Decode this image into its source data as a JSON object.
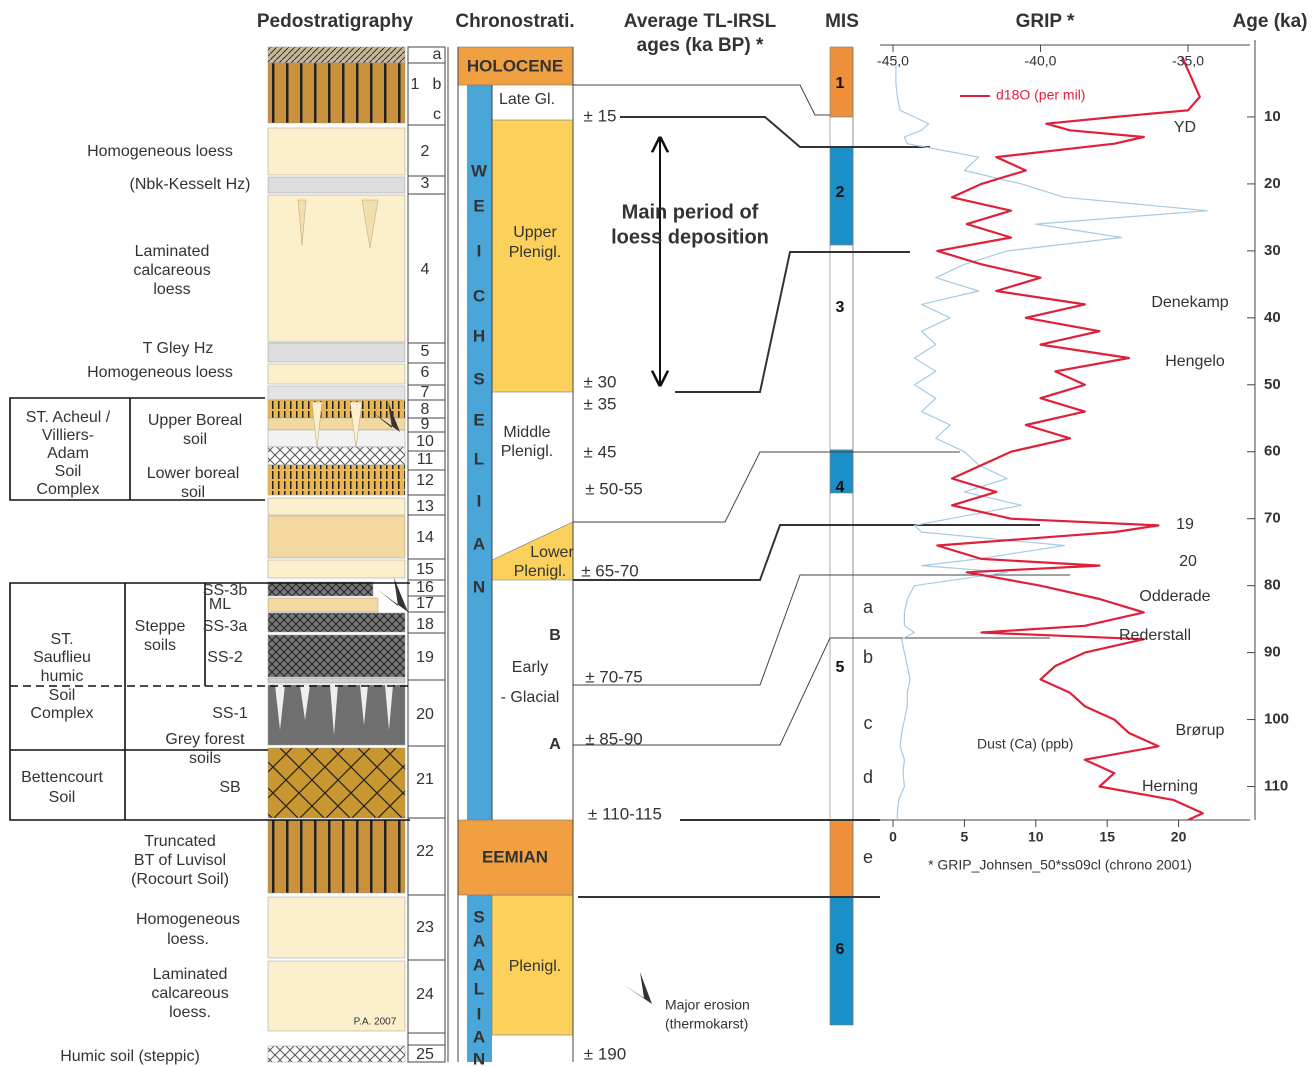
{
  "headers": {
    "pedostratigraphy": "Pedostratigraphy",
    "chronostratigraphy": "Chronostrati.",
    "ages": [
      "Average TL-IRSL",
      "ages (ka BP) *"
    ],
    "mis": "MIS"
  },
  "layer_numbers": [
    "a",
    "1",
    "b",
    "c",
    "2",
    "3",
    "4",
    "5",
    "6",
    "7",
    "8",
    "9",
    "10",
    "11",
    "12",
    "13",
    "14",
    "15",
    "16",
    "17",
    "18",
    "19",
    "20",
    "21",
    "22",
    "23",
    "24",
    "25"
  ],
  "pedo_labels": [
    "Homogeneous loess",
    "(Nbk-Kesselt Hz)",
    "Laminated",
    "calcareous",
    "loess",
    "T Gley Hz",
    "Homogeneous loess",
    "Truncated",
    "BT of Luvisol",
    "(Rocourt Soil)",
    "Homogeneous",
    "loess.",
    "Laminated",
    "calcareous",
    "loess.",
    "Humic soil (steppic)",
    "P.A. 2007"
  ],
  "soil_complexes": [
    "ST. Acheul /",
    "Villiers-",
    "Adam",
    "Soil",
    "Complex",
    "Upper Boreal",
    "soil",
    "Lower boreal",
    "soil",
    "ST.",
    "Sauflieu",
    "humic",
    "Soil",
    "Complex",
    "Steppe",
    "soils",
    "SS-3b",
    "ML",
    "SS-3a",
    "SS-2",
    "SS-1",
    "Grey forest",
    "soils",
    "Bettencourt",
    "Soil",
    "SB"
  ],
  "chrono_labels": [
    "HOLOCENE",
    "Late Gl.",
    "Upper",
    "Plenigl.",
    "Middle",
    "Plenigl.",
    "Lower",
    "Plenigl.",
    "B",
    "Early",
    "- Glacial",
    "A",
    "EEMIAN",
    "Plenigl."
  ],
  "weichselian_letters": [
    "W",
    "E",
    "I",
    "C",
    "H",
    "S",
    "E",
    "L",
    "I",
    "A",
    "N"
  ],
  "saalian_letters": [
    "S",
    "A",
    "A",
    "L",
    "I",
    "A",
    "N"
  ],
  "ages": [
    "± 15",
    "± 30",
    "± 35",
    "± 45",
    "± 50-55",
    "± 65-70",
    "± 70-75",
    "± 85-90",
    "± 110-115",
    "± 190"
  ],
  "loess_note": [
    "Main period of",
    "loess deposition"
  ],
  "mis_stages": [
    "1",
    "2",
    "3",
    "4",
    "5",
    "6"
  ],
  "mis_substages": [
    "a",
    "b",
    "c",
    "d",
    "e"
  ],
  "legend": [
    "Major erosion",
    "(thermokarst)"
  ],
  "chart_data": {
    "type": "line",
    "title": "GRIP *",
    "xlabel": "Age (ka)",
    "x": [
      1,
      3,
      5,
      7,
      9,
      10,
      11,
      12,
      13,
      14,
      16,
      18,
      20,
      22,
      24,
      26,
      28,
      30,
      32,
      34,
      36,
      38,
      40,
      42,
      44,
      46,
      48,
      50,
      52,
      54,
      56,
      58,
      60,
      62,
      64,
      66,
      68,
      70,
      71,
      72,
      74,
      76,
      77,
      78,
      80,
      82,
      84,
      86,
      87,
      88,
      90,
      92,
      94,
      96,
      98,
      100,
      102,
      104,
      106,
      108,
      110,
      112,
      114,
      115
    ],
    "xlim": [
      0,
      115
    ],
    "xticks": [
      10,
      20,
      30,
      40,
      50,
      60,
      70,
      80,
      90,
      100,
      110
    ],
    "ylim": [
      -45,
      -32.9
    ],
    "yticks": [
      {
        "value": -45,
        "label": "-45,0"
      },
      {
        "value": -40,
        "label": "-40,0"
      },
      {
        "value": -35,
        "label": "-35,0"
      }
    ],
    "y2lim": [
      0,
      25
    ],
    "y2ticks": [
      0,
      5,
      10,
      15,
      20
    ],
    "series": [
      {
        "name": "d18O (per mil)",
        "color": "#e0203a",
        "values": [
          -35.2,
          -35.0,
          -34.8,
          -34.6,
          -35.0,
          -37.5,
          -39.8,
          -39.0,
          -36.5,
          -37.5,
          -41.5,
          -40.5,
          -42.0,
          -43.0,
          -41.0,
          -42.5,
          -41.0,
          -43.5,
          -42.0,
          -40.0,
          -41.5,
          -38.5,
          -40.5,
          -38.0,
          -40.0,
          -37.0,
          -39.5,
          -38.5,
          -40.0,
          -38.5,
          -40.5,
          -39.0,
          -41.0,
          -42.0,
          -43.0,
          -41.5,
          -43.0,
          -41.0,
          -36.0,
          -37.5,
          -43.5,
          -42.0,
          -38.0,
          -42.5,
          -40.0,
          -38.0,
          -36.5,
          -38.5,
          -42.0,
          -36.5,
          -38.5,
          -39.5,
          -40.0,
          -39.0,
          -38.5,
          -37.5,
          -37.0,
          -36.0,
          -38.5,
          -37.5,
          -38.0,
          -35.5,
          -34.5,
          -35.0
        ]
      },
      {
        "name": "Dust (Ca) (ppb)",
        "color": "#a6cbe3",
        "axis": "y2",
        "values": [
          0.2,
          0.2,
          0.2,
          0.3,
          0.5,
          1.5,
          2.5,
          2.0,
          0.8,
          1.0,
          6,
          5,
          9,
          12,
          22,
          10,
          16,
          8,
          5,
          3,
          6,
          2,
          4,
          2,
          3,
          1.5,
          3,
          1.5,
          3,
          2,
          4,
          3,
          5,
          6,
          8,
          5,
          9,
          4,
          1.5,
          2,
          12,
          6,
          2,
          8,
          1.5,
          1,
          0.8,
          0.8,
          1.5,
          0.6,
          0.8,
          1,
          1.2,
          1,
          1,
          0.8,
          0.6,
          0.5,
          0.8,
          0.7,
          0.8,
          0.4,
          0.3,
          0.3
        ]
      }
    ],
    "annotations": [
      "YD",
      "Denekamp",
      "Hengelo",
      "19",
      "20",
      "Odderade",
      "Rederstall",
      "Brørup",
      "Herning"
    ],
    "footnote": "* GRIP_Johnsen_50*ss09cl (chrono 2001)"
  }
}
